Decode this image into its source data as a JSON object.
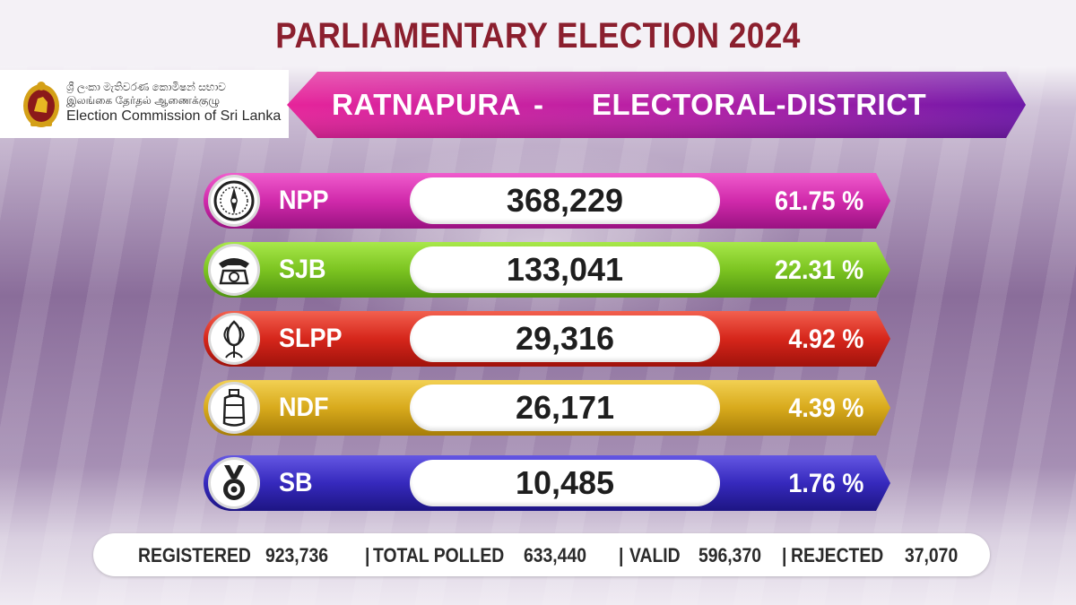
{
  "header": {
    "title": "PARLIAMENTARY ELECTION 2024"
  },
  "logo": {
    "line_sinhala": "ශ්‍රී ලංකා මැතිවරණ කොමිෂන් සභාව",
    "line_tamil": "இலங்கை தேர்தல் ஆணைக்குழு",
    "line_english": "Election Commission of Sri Lanka"
  },
  "district": {
    "name": "RATNAPURA",
    "separator": "-",
    "label": "ELECTORAL-DISTRICT"
  },
  "results": [
    {
      "party": "NPP",
      "votes": "368,229",
      "percent": "61.75 %",
      "symbol": "compass-icon",
      "color_light": "#e13bb9",
      "color_dark": "#a5158a"
    },
    {
      "party": "SJB",
      "votes": "133,041",
      "percent": "22.31 %",
      "symbol": "telephone-icon",
      "color_light": "#8bd22a",
      "color_dark": "#5aa316"
    },
    {
      "party": "SLPP",
      "votes": "29,316",
      "percent": "4.92 %",
      "symbol": "lotus-bud-icon",
      "color_light": "#e43a2c",
      "color_dark": "#b3180f"
    },
    {
      "party": "NDF",
      "votes": "26,171",
      "percent": "4.39 %",
      "symbol": "gas-cylinder-icon",
      "color_light": "#e2b626",
      "color_dark": "#b38a0e"
    },
    {
      "party": "SB",
      "votes": "10,485",
      "percent": "1.76 %",
      "symbol": "medal-icon",
      "color_light": "#4335c9",
      "color_dark": "#231a8e"
    }
  ],
  "summary": {
    "registered_label": "REGISTERED",
    "registered_value": "923,736",
    "polled_label": "TOTAL POLLED",
    "polled_value": "633,440",
    "valid_label": "VALID",
    "valid_value": "596,370",
    "rejected_label": "REJECTED",
    "rejected_value": "37,070",
    "divider": "|"
  },
  "colors": {
    "title": "#8b1f2e",
    "banner_left": "#e02a9a",
    "banner_right": "#7a1aa8"
  }
}
